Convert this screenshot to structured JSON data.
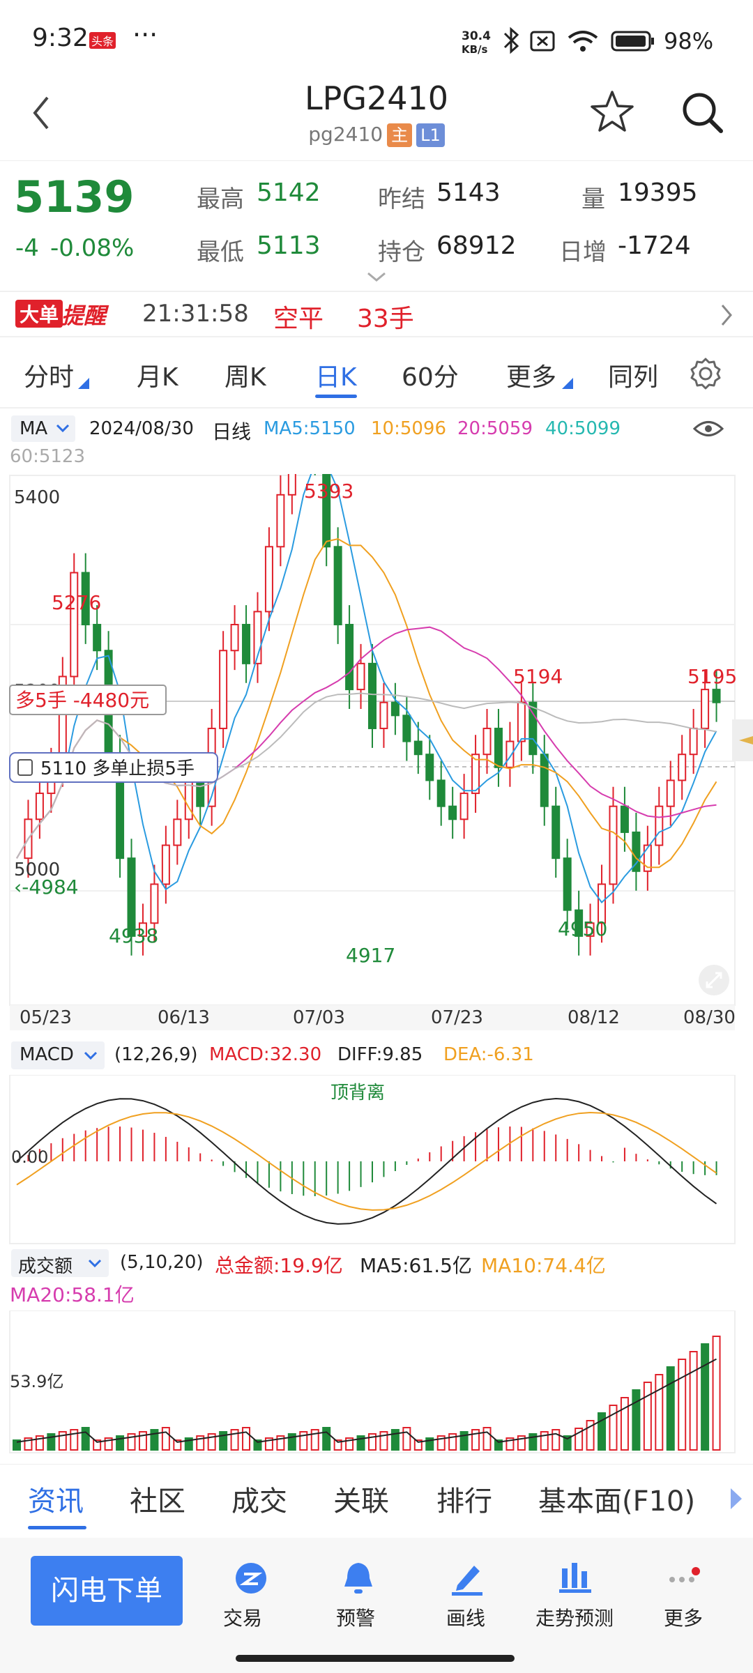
{
  "status": {
    "time": "9:32",
    "news_badge": "头条",
    "more": "···",
    "net_speed_top": "30.4",
    "net_speed_bottom": "KB/s",
    "battery": "98%"
  },
  "header": {
    "title": "LPG2410",
    "subtitle": "pg2410",
    "tag_main": "主",
    "tag_l1": "L1"
  },
  "quote": {
    "price": "5139",
    "change": "-4",
    "change_pct": "-0.08%",
    "high_label": "最高",
    "high": "5142",
    "low_label": "最低",
    "low": "5113",
    "prev_settle_label": "昨结",
    "prev_settle": "5143",
    "open_interest_label": "持仓",
    "open_interest": "68912",
    "volume_label": "量",
    "volume": "19395",
    "daily_inc_label": "日增",
    "daily_inc": "-1724"
  },
  "alert": {
    "badge_a": "大单",
    "badge_b": "提醒",
    "time": "21:31:58",
    "type": "空平",
    "qty": "33手"
  },
  "period_tabs": [
    {
      "label": "分时"
    },
    {
      "label": "月K"
    },
    {
      "label": "周K"
    },
    {
      "label": "日K"
    },
    {
      "label": "60分"
    },
    {
      "label": "更多"
    },
    {
      "label": "同列"
    }
  ],
  "ma_bar": {
    "selector": "MA",
    "date": "2024/08/30",
    "kind": "日线",
    "ma5": "MA5:5150",
    "ma10": "10:5096",
    "ma20": "20:5059",
    "ma40": "40:5099",
    "ma60": "60:5123"
  },
  "kchart": {
    "y_labels": [
      "5400",
      "5200",
      "5000"
    ],
    "x_labels": [
      "05/23",
      "06/13",
      "07/03",
      "07/23",
      "08/12",
      "08/30"
    ],
    "marks": {
      "high1": "5276",
      "high2": "5393",
      "high3": "5194",
      "high4": "5195",
      "low1": "4938",
      "low2": "4917",
      "low3": "4950",
      "left_low": "4984"
    },
    "position_tag": "多5手  -4480元",
    "stop_tag": "5110  多单止损5手"
  },
  "macd": {
    "selector": "MACD",
    "params": "(12,26,9)",
    "macd": "MACD:32.30",
    "diff": "DIFF:9.85",
    "dea": "DEA:-6.31",
    "zero": "0.00",
    "note": "顶背离"
  },
  "vol": {
    "selector": "成交额",
    "params": "(5,10,20)",
    "total": "总金额:19.9亿",
    "ma5": "MA5:61.5亿",
    "ma10": "MA10:74.4亿",
    "ma20": "MA20:58.1亿",
    "y_label": "53.9亿"
  },
  "info_tabs": [
    {
      "label": "资讯"
    },
    {
      "label": "社区"
    },
    {
      "label": "成交"
    },
    {
      "label": "关联"
    },
    {
      "label": "排行"
    },
    {
      "label": "基本面(F10)"
    }
  ],
  "nav": {
    "primary": "闪电下单",
    "items": [
      {
        "label": "交易"
      },
      {
        "label": "预警"
      },
      {
        "label": "画线"
      },
      {
        "label": "走势预测"
      },
      {
        "label": "更多"
      }
    ]
  },
  "colors": {
    "up": "#e0212b",
    "down": "#1f8a3a",
    "accent": "#2f6fe4",
    "ma5": "#2a9be0",
    "ma10": "#f0a020",
    "ma20": "#d63cae",
    "ma40": "#25b8b0"
  }
}
